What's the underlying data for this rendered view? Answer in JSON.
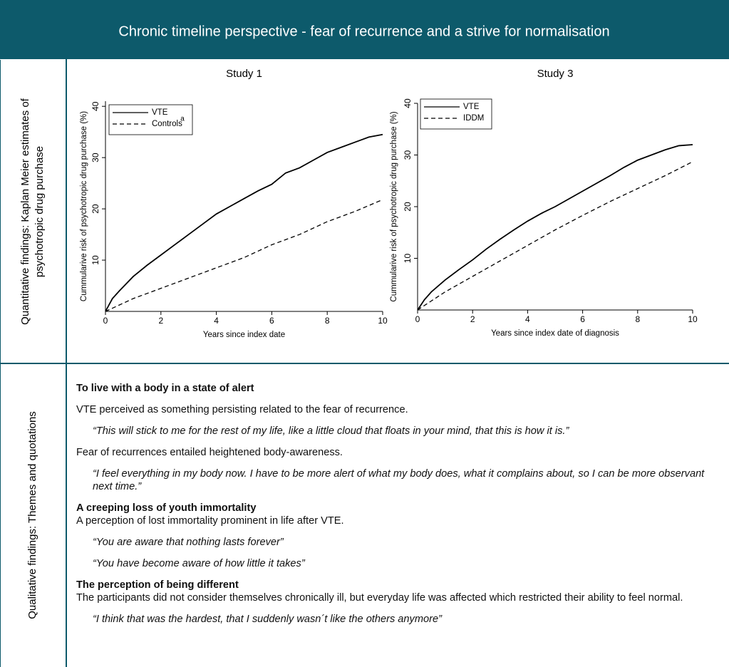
{
  "header": {
    "title": "Chronic timeline perspective -  fear of recurrence and a strive for normalisation"
  },
  "rows": [
    {
      "label_lines": [
        "Quantitative findings: Kaplan Meier estimates of",
        "psychotropic drug purchase"
      ]
    },
    {
      "label_lines": [
        "Qualitative findings: Themes and quotations"
      ]
    }
  ],
  "chart_data": [
    {
      "type": "line",
      "title": "Study 1",
      "x_label": "Years since index date",
      "y_label": "Cummularive risk of psychotropic drug purchase (%)",
      "xlim": [
        0,
        10
      ],
      "ylim": [
        0,
        41
      ],
      "xticks": [
        0,
        2,
        4,
        6,
        8,
        10
      ],
      "yticks": [
        10,
        20,
        30,
        40
      ],
      "grid": false,
      "legend": "top-left",
      "annotation": "a",
      "series": [
        {
          "name": "VTE",
          "color": "#000000",
          "line_style": "solid",
          "x": [
            0,
            0.25,
            0.5,
            1,
            1.5,
            2,
            2.5,
            3,
            3.5,
            4,
            4.5,
            5,
            5.5,
            6,
            6.5,
            7,
            7.5,
            8,
            8.5,
            9,
            9.5,
            10
          ],
          "values": [
            0,
            2.5,
            4,
            6.8,
            9,
            11,
            13,
            15,
            17,
            19,
            20.5,
            22,
            23.5,
            24.8,
            27,
            28,
            29.5,
            31,
            32,
            33,
            34,
            34.5
          ]
        },
        {
          "name": "Controls",
          "color": "#000000",
          "line_style": "dashed",
          "x": [
            0,
            1,
            2,
            3,
            4,
            5,
            6,
            7,
            8,
            9,
            10
          ],
          "values": [
            0,
            2.5,
            4.5,
            6.5,
            8.5,
            10.5,
            13,
            15,
            17.5,
            19.5,
            21.8
          ]
        }
      ]
    },
    {
      "type": "line",
      "title": "Study 3",
      "x_label": "Years since index date of diagnosis",
      "y_label": "Cummularive risk of psychotropic drug purchase (%)",
      "xlim": [
        0,
        10
      ],
      "ylim": [
        0,
        40
      ],
      "xticks": [
        0,
        2,
        4,
        6,
        8,
        10
      ],
      "yticks": [
        10,
        20,
        30,
        40
      ],
      "grid": false,
      "legend": "top-left",
      "series": [
        {
          "name": "VTE",
          "color": "#000000",
          "line_style": "solid",
          "x": [
            0,
            0.25,
            0.5,
            1,
            1.5,
            2,
            2.5,
            3,
            3.5,
            4,
            4.5,
            5,
            5.5,
            6,
            6.5,
            7,
            7.5,
            8,
            8.5,
            9,
            9.5,
            10
          ],
          "values": [
            0,
            2,
            3.5,
            5.8,
            7.8,
            9.7,
            11.8,
            13.7,
            15.5,
            17.2,
            18.7,
            20,
            21.5,
            23,
            24.5,
            26,
            27.6,
            29,
            30,
            31,
            31.8,
            32
          ]
        },
        {
          "name": "IDDM",
          "color": "#000000",
          "line_style": "dashed",
          "x": [
            0,
            1,
            2,
            3,
            4,
            5,
            6,
            7,
            8,
            9,
            10
          ],
          "values": [
            0,
            3.5,
            6.5,
            9.5,
            12.5,
            15.5,
            18.3,
            21,
            23.5,
            26,
            28.7
          ]
        }
      ]
    }
  ],
  "themes": [
    {
      "title": "To live with a body in a state of alert",
      "blocks": [
        {
          "text": "VTE perceived as something persisting related to the fear of recurrence."
        },
        {
          "quote": "“This will stick to me for the rest of my life, like a little cloud that floats in your mind, that this is how it is.”"
        },
        {
          "text": "Fear of recurrences entailed heightened body-awareness."
        },
        {
          "quote": "“I feel everything in my body now. I have to be more alert of what my body does, what it complains about, so I can be more observant next time.”"
        }
      ]
    },
    {
      "title": "A creeping loss of youth immortality",
      "blocks": [
        {
          "text": "A perception of lost immortality prominent in life after VTE."
        },
        {
          "quote": "“You are aware that nothing lasts forever”"
        },
        {
          "quote": "“You have become aware of how little it takes”"
        }
      ]
    },
    {
      "title": "The perception of being different",
      "blocks": [
        {
          "text": "The participants did not consider themselves chronically ill, but everyday life was affected which restricted their ability to feel normal."
        },
        {
          "quote": "“I think that was the hardest, that I suddenly wasn´t like the others anymore”"
        }
      ]
    }
  ]
}
